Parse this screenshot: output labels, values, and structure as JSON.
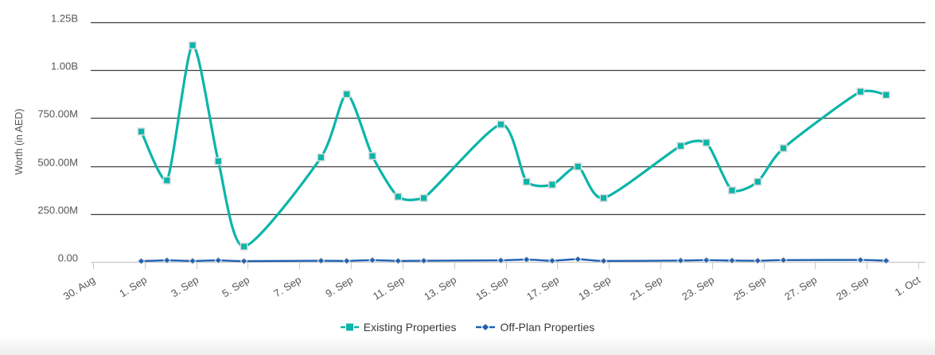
{
  "chart_data": {
    "type": "line",
    "title": "",
    "xlabel": "",
    "ylabel": "Worth (in AED)",
    "ylim": [
      0,
      1250000000
    ],
    "grid": "horizontal",
    "legend_position": "bottom",
    "y_tick_labels": [
      "0.00",
      "250.00M",
      "500.00M",
      "750.00M",
      "1.00B",
      "1.25B"
    ],
    "x_tick_labels": [
      "30. Aug",
      "1. Sep",
      "3. Sep",
      "5. Sep",
      "7. Sep",
      "9. Sep",
      "11. Sep",
      "13. Sep",
      "15. Sep",
      "17. Sep",
      "19. Sep",
      "21. Sep",
      "23. Sep",
      "25. Sep",
      "27. Sep",
      "29. Sep",
      "1. Oct"
    ],
    "x_axis_start_date": "30. Aug",
    "x_axis_end_date": "1. Oct",
    "series": [
      {
        "name": "Existing Properties",
        "color": "#0bb5a9",
        "marker": "square",
        "points": [
          {
            "date": "1. Sep",
            "day": 2,
            "value": 680000000
          },
          {
            "date": "2. Sep",
            "day": 3,
            "value": 425000000
          },
          {
            "date": "3. Sep",
            "day": 4,
            "value": 1130000000
          },
          {
            "date": "4. Sep",
            "day": 5,
            "value": 525000000
          },
          {
            "date": "5. Sep",
            "day": 6,
            "value": 80000000
          },
          {
            "date": "8. Sep",
            "day": 9,
            "value": 545000000
          },
          {
            "date": "9. Sep",
            "day": 10,
            "value": 875000000
          },
          {
            "date": "10. Sep",
            "day": 11,
            "value": 552000000
          },
          {
            "date": "11. Sep",
            "day": 12,
            "value": 340000000
          },
          {
            "date": "12. Sep",
            "day": 13,
            "value": 333000000
          },
          {
            "date": "15. Sep",
            "day": 16,
            "value": 717000000
          },
          {
            "date": "16. Sep",
            "day": 17,
            "value": 418000000
          },
          {
            "date": "17. Sep",
            "day": 18,
            "value": 403000000
          },
          {
            "date": "18. Sep",
            "day": 19,
            "value": 497000000
          },
          {
            "date": "19. Sep",
            "day": 20,
            "value": 333000000
          },
          {
            "date": "22. Sep",
            "day": 23,
            "value": 605000000
          },
          {
            "date": "23. Sep",
            "day": 24,
            "value": 622000000
          },
          {
            "date": "24. Sep",
            "day": 25,
            "value": 373000000
          },
          {
            "date": "25. Sep",
            "day": 26,
            "value": 418000000
          },
          {
            "date": "26. Sep",
            "day": 27,
            "value": 593000000
          },
          {
            "date": "29. Sep",
            "day": 30,
            "value": 888000000
          },
          {
            "date": "30. Sep",
            "day": 31,
            "value": 871000000
          }
        ]
      },
      {
        "name": "Off-Plan Properties",
        "color": "#1e60b1",
        "marker": "diamond",
        "points": [
          {
            "date": "1. Sep",
            "day": 2,
            "value": 4000000
          },
          {
            "date": "2. Sep",
            "day": 3,
            "value": 8000000
          },
          {
            "date": "3. Sep",
            "day": 4,
            "value": 5000000
          },
          {
            "date": "4. Sep",
            "day": 5,
            "value": 8000000
          },
          {
            "date": "5. Sep",
            "day": 6,
            "value": 4000000
          },
          {
            "date": "8. Sep",
            "day": 9,
            "value": 6000000
          },
          {
            "date": "9. Sep",
            "day": 10,
            "value": 5000000
          },
          {
            "date": "10. Sep",
            "day": 11,
            "value": 9000000
          },
          {
            "date": "11. Sep",
            "day": 12,
            "value": 5000000
          },
          {
            "date": "12. Sep",
            "day": 13,
            "value": 6000000
          },
          {
            "date": "15. Sep",
            "day": 16,
            "value": 8000000
          },
          {
            "date": "16. Sep",
            "day": 17,
            "value": 12000000
          },
          {
            "date": "17. Sep",
            "day": 18,
            "value": 6000000
          },
          {
            "date": "18. Sep",
            "day": 19,
            "value": 14000000
          },
          {
            "date": "19. Sep",
            "day": 20,
            "value": 5000000
          },
          {
            "date": "22. Sep",
            "day": 23,
            "value": 7000000
          },
          {
            "date": "23. Sep",
            "day": 24,
            "value": 9000000
          },
          {
            "date": "24. Sep",
            "day": 25,
            "value": 7000000
          },
          {
            "date": "25. Sep",
            "day": 26,
            "value": 6000000
          },
          {
            "date": "26. Sep",
            "day": 27,
            "value": 9000000
          },
          {
            "date": "29. Sep",
            "day": 30,
            "value": 10000000
          },
          {
            "date": "30. Sep",
            "day": 31,
            "value": 6000000
          }
        ]
      }
    ]
  },
  "legend": {
    "items": [
      {
        "label": "Existing Properties",
        "color": "#0bb5a9",
        "marker": "square"
      },
      {
        "label": "Off-Plan Properties",
        "color": "#1e60b1",
        "marker": "diamond"
      }
    ]
  },
  "colors": {
    "gridline": "#3d3d3d",
    "axis": "#c9c9c9",
    "tick_label": "#555555",
    "legend_text": "#3a3a3a"
  }
}
